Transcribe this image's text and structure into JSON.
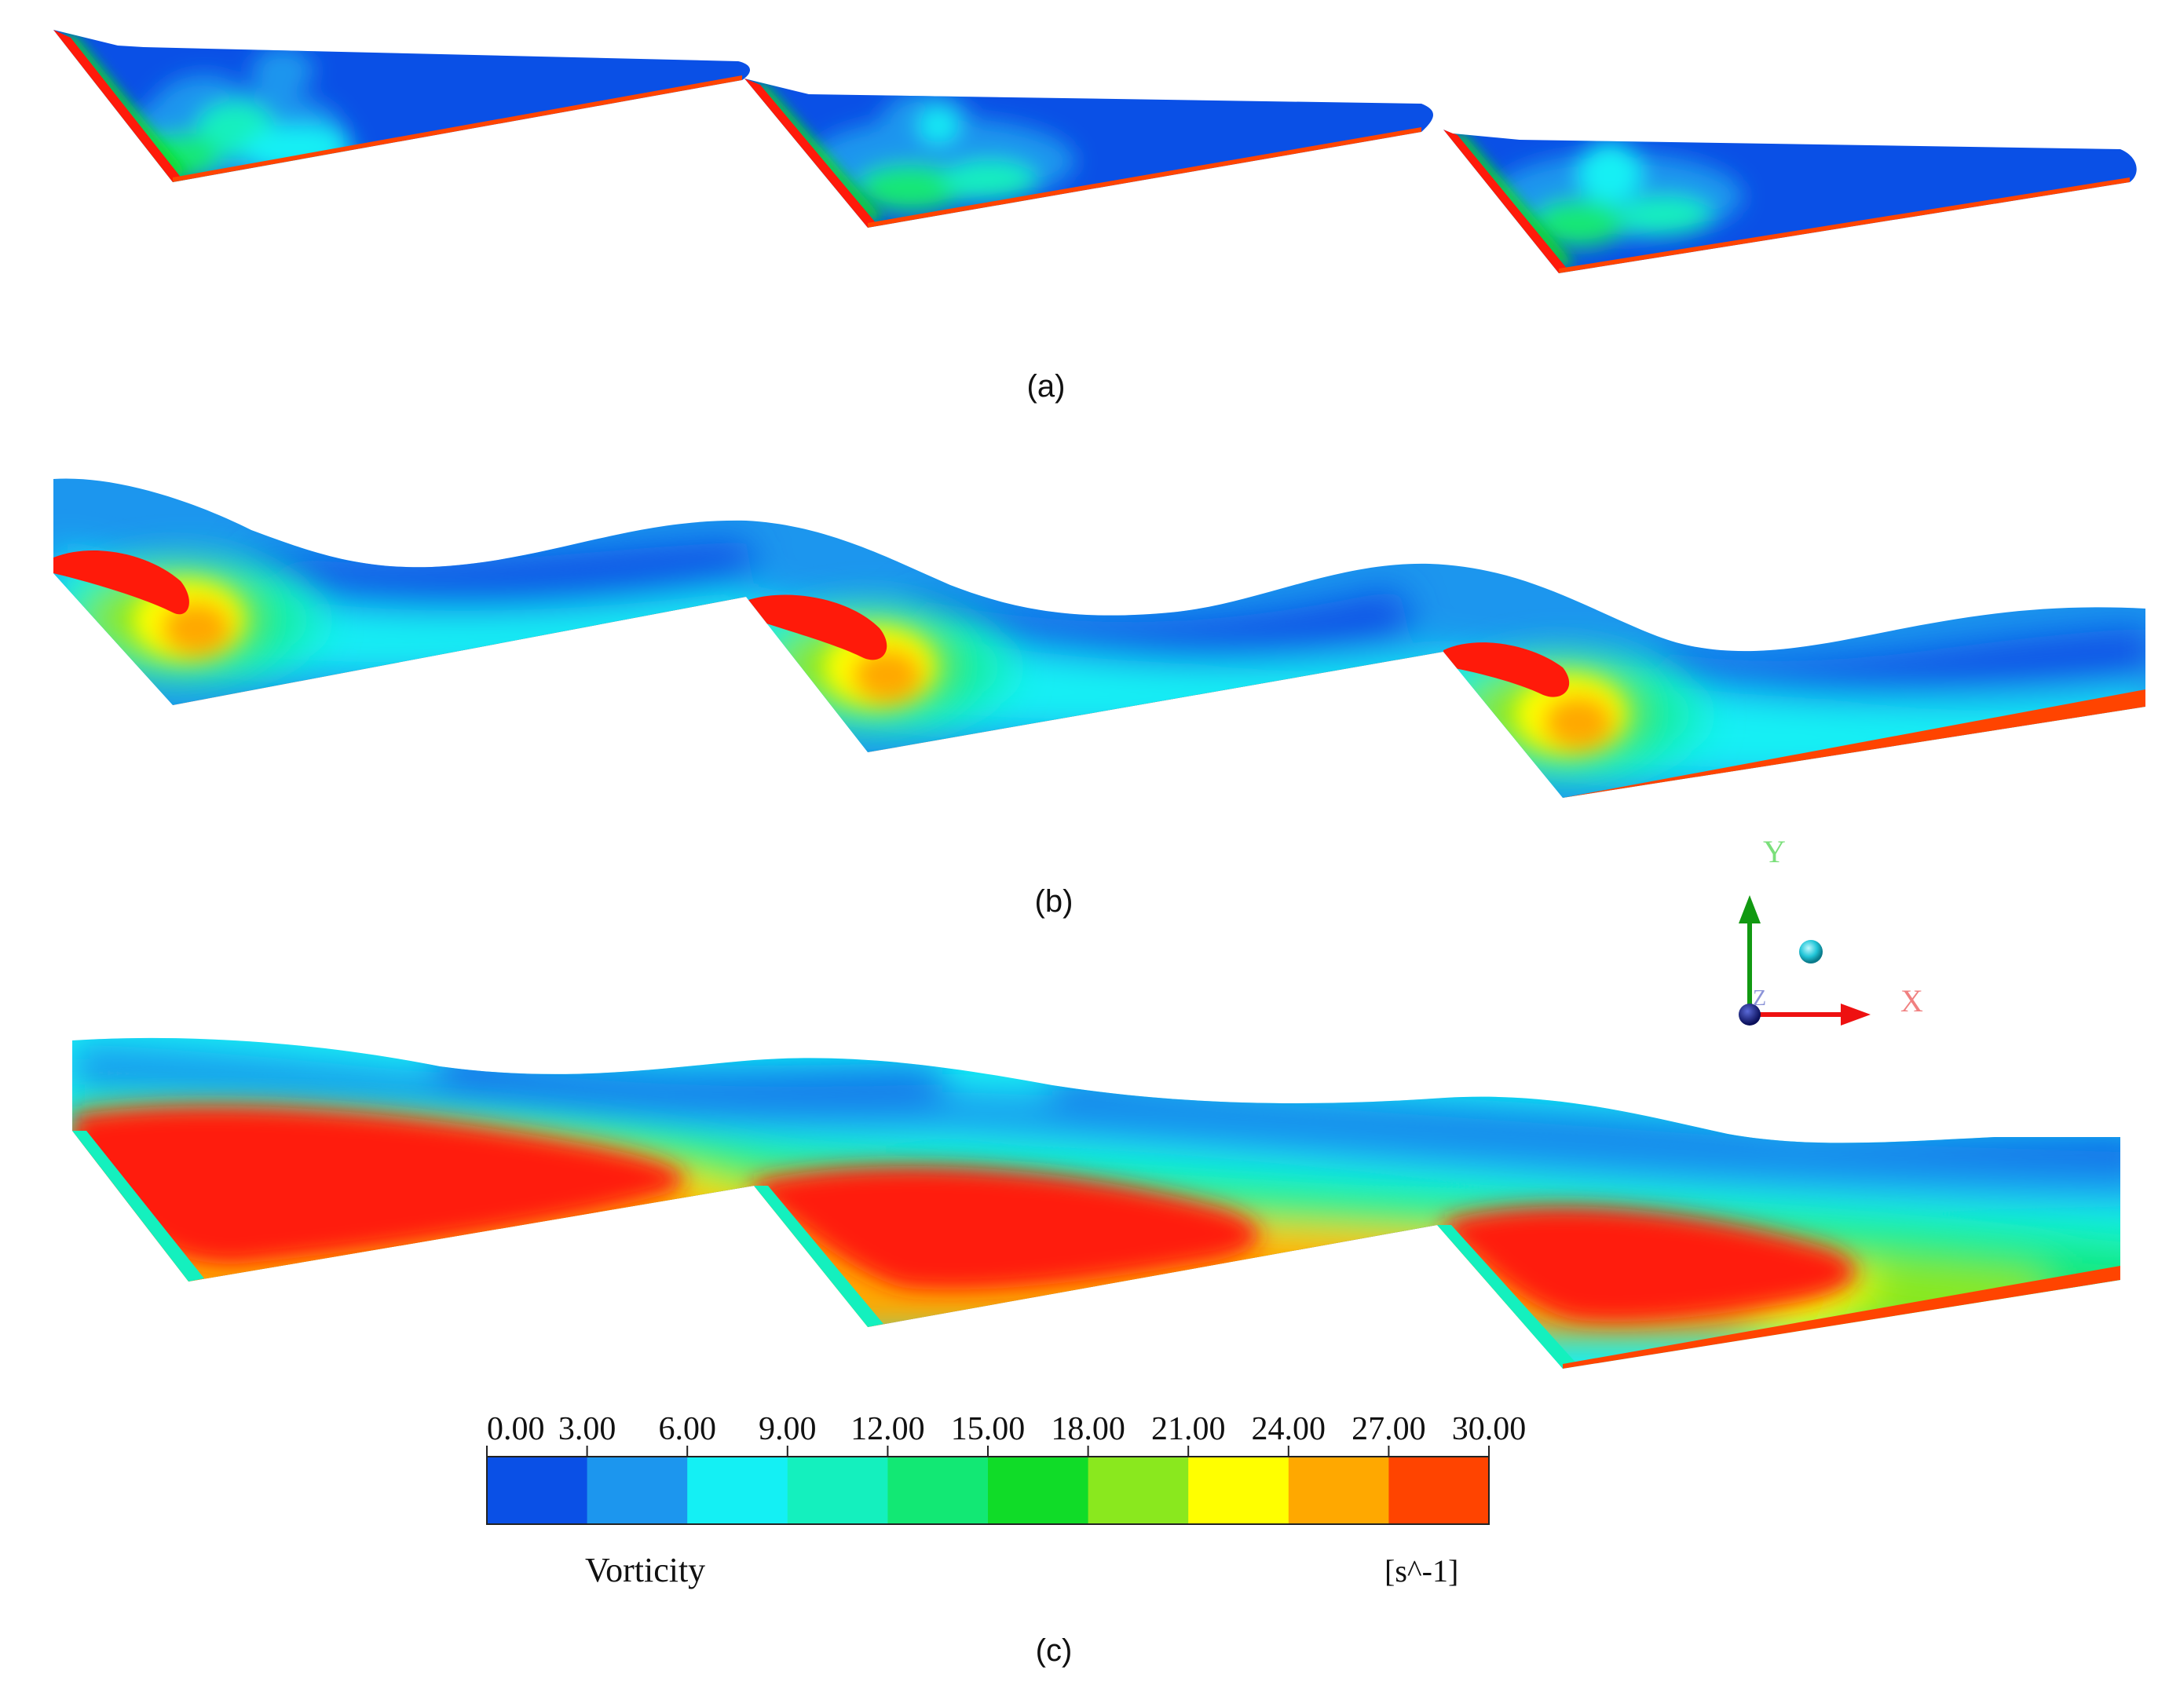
{
  "panels": [
    {
      "label": "(a)",
      "level": "low"
    },
    {
      "label": "(b)",
      "level": "medium"
    },
    {
      "label": "(c)",
      "level": "high"
    }
  ],
  "colorbar": {
    "ticks": [
      "0.00",
      "3.00",
      "6.00",
      "9.00",
      "12.00",
      "15.00",
      "18.00",
      "21.00",
      "24.00",
      "27.00",
      "30.00"
    ],
    "colors": [
      "#0a50e6",
      "#1c96ee",
      "#14f0f4",
      "#14f0be",
      "#12e874",
      "#10dc28",
      "#8ae81e",
      "#ffff00",
      "#ffa800",
      "#ff4400"
    ],
    "quantity": "Vorticity",
    "unit": "[s^-1]"
  },
  "axes": {
    "x": "X",
    "y": "Y",
    "z": "Z"
  },
  "colors": {
    "band0": "#0a50e6",
    "band1": "#1c96ee",
    "band2": "#14f0f4",
    "band3": "#14f0be",
    "band4": "#12e874",
    "band5": "#10dc28",
    "band6": "#8ae81e",
    "band7": "#ffff00",
    "band8": "#ffa800",
    "band9": "#ff4400",
    "red": "#ff1a0a",
    "axis_x": "#ee1111",
    "axis_y": "#119911"
  }
}
